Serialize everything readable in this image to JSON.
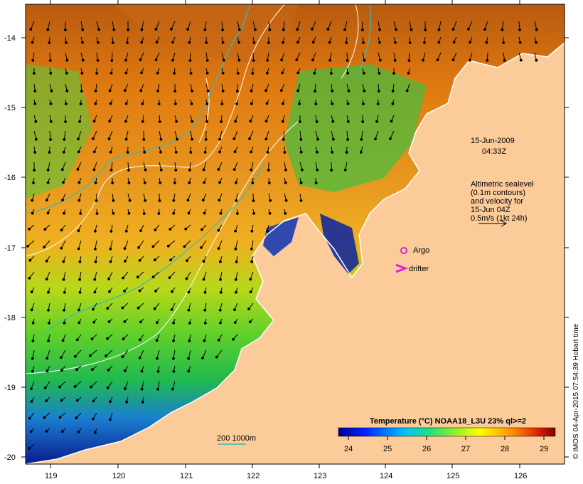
{
  "map": {
    "date": "15-Jun-2009",
    "time": "04:33Z",
    "altimetry_note": [
      "Altimetric sealevel",
      "(0.1m contours)",
      "and velocity for",
      "15-Jun 04Z",
      "0.5m/s (1kt 24h)"
    ],
    "legend": {
      "argo_label": "Argo",
      "drifter_label": "drifter",
      "isobath_label": "200  1000m"
    },
    "colorbar": {
      "title": "Temperature (°C) NOAA18_L3U 23% ql>=2",
      "ticks": [
        "24",
        "25",
        "26",
        "27",
        "28",
        "29"
      ],
      "range": [
        23.8,
        29.3
      ]
    },
    "lon_ticks": [
      "119",
      "120",
      "121",
      "122",
      "123",
      "124",
      "125",
      "126"
    ],
    "lat_ticks": [
      "-14",
      "-15",
      "-16",
      "-17",
      "-18",
      "-19",
      "-20"
    ],
    "credit": "© IMOS 04-Apr-2015 07:54:39 Hobart time",
    "colors": {
      "land": "#fccb9a",
      "argo": "#dd22dd",
      "isobath": "#33bbbb",
      "contour": "#ffffff"
    }
  }
}
